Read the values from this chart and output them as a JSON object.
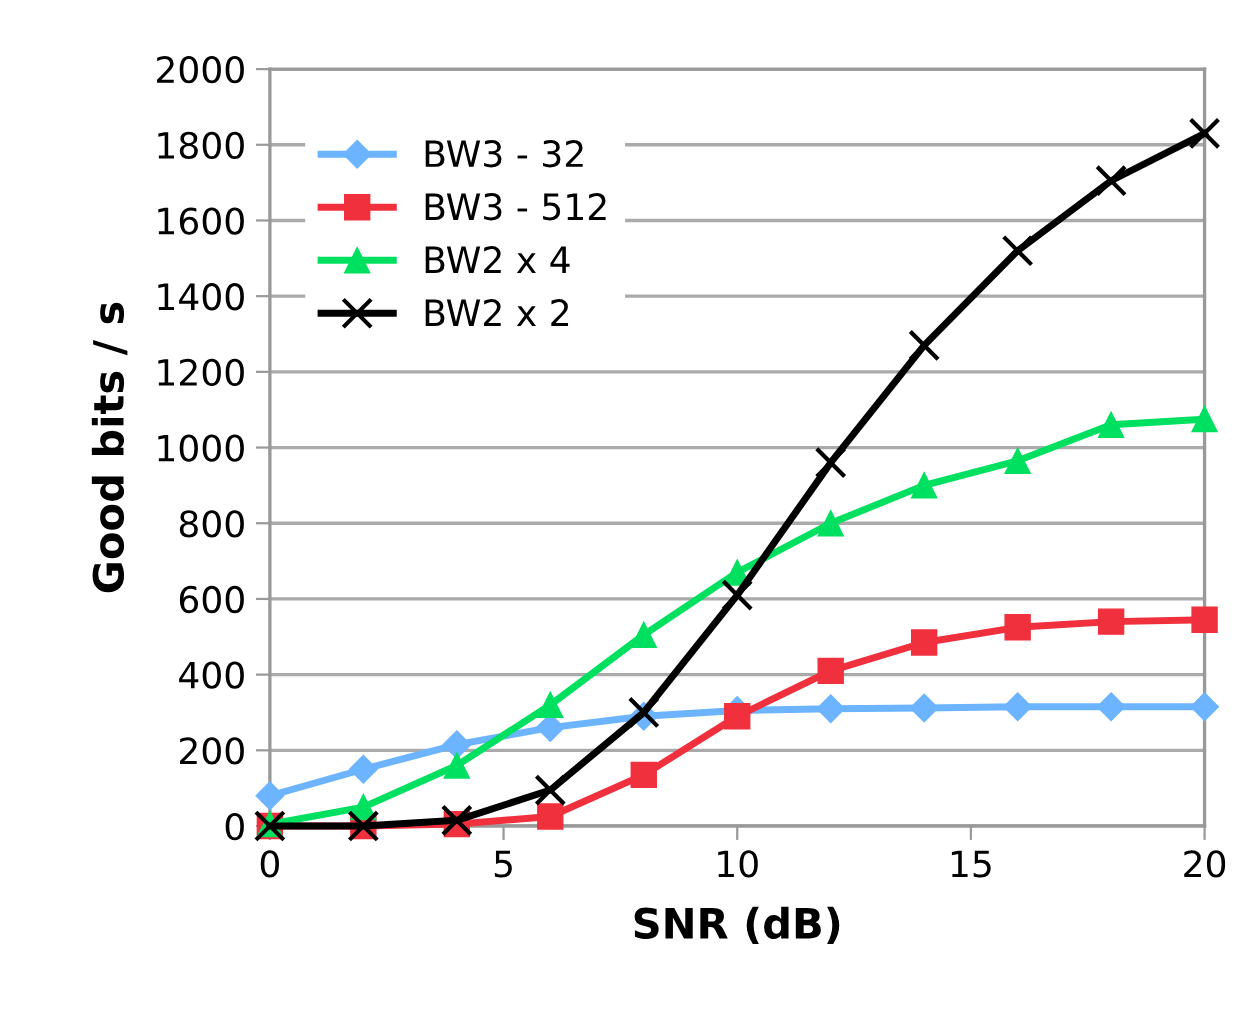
{
  "chart_data": {
    "type": "line",
    "xlabel": "SNR (dB)",
    "ylabel": "Good bits / s",
    "x": [
      0,
      2,
      4,
      6,
      8,
      10,
      12,
      14,
      16,
      18,
      20
    ],
    "xlim": [
      0,
      20
    ],
    "xticks": [
      0,
      5,
      10,
      15,
      20
    ],
    "ylim": [
      0,
      2000
    ],
    "yticks": [
      0,
      200,
      400,
      600,
      800,
      1000,
      1200,
      1400,
      1600,
      1800,
      2000
    ],
    "grid": "y",
    "legend": "top left",
    "series": [
      {
        "name": "BW3 - 32",
        "color": "#6cb4ff",
        "marker": "diamond",
        "values": [
          80,
          150,
          215,
          260,
          290,
          305,
          310,
          312,
          315,
          315,
          315
        ]
      },
      {
        "name": "BW3 - 512",
        "color": "#f0303c",
        "marker": "square",
        "values": [
          0,
          0,
          5,
          25,
          135,
          290,
          410,
          485,
          525,
          540,
          545
        ]
      },
      {
        "name": "BW2 x 4",
        "color": "#00e060",
        "marker": "triangle",
        "values": [
          5,
          50,
          160,
          320,
          505,
          670,
          800,
          900,
          965,
          1060,
          1075
        ]
      },
      {
        "name": "BW2 x 2",
        "color": "#000000",
        "marker": "cross",
        "values": [
          0,
          0,
          15,
          95,
          300,
          610,
          960,
          1270,
          1520,
          1705,
          1830
        ]
      }
    ]
  }
}
